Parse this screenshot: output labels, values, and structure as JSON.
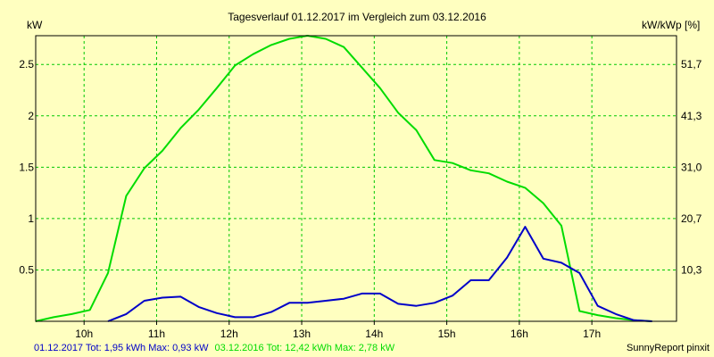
{
  "chart_data": {
    "type": "line",
    "title": "Tagesverlauf 01.12.2017 im Vergleich zum 03.12.2016",
    "ylabel_left": "kW",
    "ylabel_right": "kW/kWp [%]",
    "x_ticks": [
      "10h",
      "11h",
      "12h",
      "13h",
      "14h",
      "15h",
      "16h",
      "17h"
    ],
    "x_tick_values": [
      10,
      11,
      12,
      13,
      14,
      15,
      16,
      17
    ],
    "xlim": [
      9.333,
      18.167
    ],
    "y_ticks": [
      "0.5",
      "1",
      "1.5",
      "2",
      "2.5"
    ],
    "y_tick_values": [
      0.5,
      1,
      1.5,
      2,
      2.5
    ],
    "ylim": [
      0,
      2.78
    ],
    "y2_ticks": [
      "10,3",
      "20,7",
      "31,0",
      "41,3",
      "51,7"
    ],
    "grid": true,
    "series": [
      {
        "name": "01.12.2017",
        "color": "#0000c8",
        "x": [
          10.33,
          10.58,
          10.83,
          11.08,
          11.33,
          11.58,
          11.83,
          12.08,
          12.33,
          12.58,
          12.83,
          13.08,
          13.33,
          13.58,
          13.83,
          14.08,
          14.33,
          14.58,
          14.83,
          15.08,
          15.33,
          15.58,
          15.83,
          16.08,
          16.33,
          16.58,
          16.83,
          17.08,
          17.33,
          17.58,
          17.83
        ],
        "values": [
          0.0,
          0.07,
          0.2,
          0.23,
          0.24,
          0.14,
          0.08,
          0.04,
          0.04,
          0.09,
          0.18,
          0.18,
          0.2,
          0.22,
          0.27,
          0.27,
          0.17,
          0.15,
          0.18,
          0.25,
          0.4,
          0.4,
          0.62,
          0.92,
          0.61,
          0.57,
          0.47,
          0.15,
          0.07,
          0.01,
          0.0
        ]
      },
      {
        "name": "03.12.2016",
        "color": "#00dc00",
        "x": [
          9.33,
          9.58,
          9.83,
          10.08,
          10.33,
          10.58,
          10.83,
          11.08,
          11.33,
          11.58,
          11.83,
          12.08,
          12.33,
          12.58,
          12.83,
          13.08,
          13.33,
          13.58,
          13.83,
          14.08,
          14.33,
          14.58,
          14.83,
          15.08,
          15.33,
          15.58,
          15.83,
          16.08,
          16.33,
          16.58,
          16.83,
          17.08,
          17.33,
          17.58,
          17.83
        ],
        "values": [
          0.0,
          0.04,
          0.07,
          0.11,
          0.47,
          1.22,
          1.49,
          1.66,
          1.88,
          2.06,
          2.27,
          2.49,
          2.6,
          2.69,
          2.75,
          2.78,
          2.75,
          2.67,
          2.47,
          2.27,
          2.03,
          1.86,
          1.57,
          1.54,
          1.47,
          1.44,
          1.36,
          1.3,
          1.15,
          0.93,
          0.1,
          0.06,
          0.03,
          0.01,
          0.0
        ]
      }
    ],
    "legend": {
      "position": "bottom-left",
      "entries": [
        {
          "text": "01.12.2017 Tot: 1,95 kWh Max: 0,93 kW",
          "color": "#0000c8"
        },
        {
          "text": "03.12.2016 Tot: 12,42 kWh Max: 2,78 kW",
          "color": "#00dc00"
        }
      ]
    },
    "credit": "SunnyReport pinxit",
    "colors": {
      "background": "#ffffc0",
      "grid": "#00c800",
      "axis": "#000000"
    }
  }
}
